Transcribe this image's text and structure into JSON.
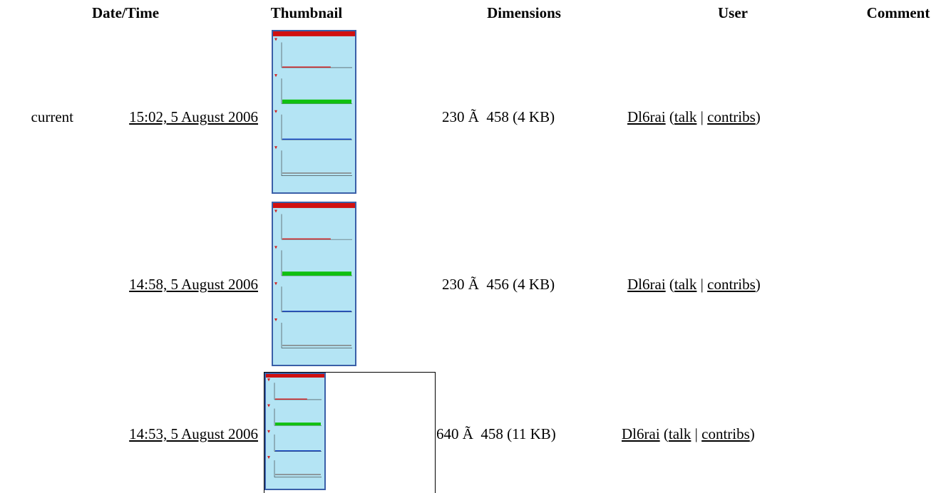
{
  "table": {
    "headers": [
      "Date/Time",
      "Thumbnail",
      "Dimensions",
      "User",
      "Comment"
    ],
    "user_link_format": {
      "open": "(",
      "separator": "|",
      "close": ")"
    },
    "rows": [
      {
        "status": "current",
        "datetime": "15:02, 5 August 2006",
        "dimensions": "230 Ã  458 (4 KB)",
        "user": "Dl6rai",
        "talk": "talk",
        "contribs": "contribs"
      },
      {
        "datetime": "14:58, 5 August 2006",
        "dimensions": "230 Ã  456 (4 KB)",
        "user": "Dl6rai",
        "talk": "talk",
        "contribs": "contribs"
      },
      {
        "datetime": "14:53, 5 August 2006",
        "dimensions": "640 Ã  458 (11 KB)",
        "user": "Dl6rai",
        "talk": "talk",
        "contribs": "contribs"
      }
    ]
  }
}
